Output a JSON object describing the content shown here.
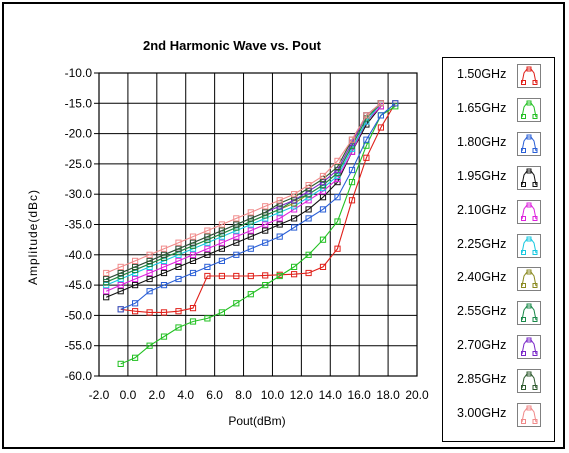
{
  "chart_data": {
    "type": "line",
    "title": "2nd Harmonic Wave vs. Pout",
    "xlabel": "Pout(dBm)",
    "ylabel": "Amplitude(dBc)",
    "xlim": [
      -2.0,
      20.0
    ],
    "ylim": [
      -60.0,
      -10.0
    ],
    "xticks": [
      "-2.0",
      "0.0",
      "2.0",
      "4.0",
      "6.0",
      "8.0",
      "10.0",
      "12.0",
      "14.0",
      "16.0",
      "18.0",
      "20.0"
    ],
    "yticks": [
      "-10.0",
      "-15.0",
      "-20.0",
      "-25.0",
      "-30.0",
      "-35.0",
      "-40.0",
      "-45.0",
      "-50.0",
      "-55.0",
      "-60.0"
    ],
    "grid": true,
    "legend_position": "right",
    "series": [
      {
        "name": "1.50GHz",
        "color": "#e0201a",
        "x": [
          -0.5,
          0.5,
          1.5,
          2.5,
          3.5,
          4.5,
          5.5,
          6.5,
          7.5,
          8.5,
          9.5,
          10.5,
          11.5,
          12.5,
          13.5,
          14.5,
          15.5,
          16.5,
          17.5,
          18.5
        ],
        "y": [
          -49.0,
          -49.3,
          -49.5,
          -49.5,
          -49.3,
          -48.8,
          -43.5,
          -43.5,
          -43.5,
          -43.5,
          -43.4,
          -43.3,
          -43.2,
          -43.0,
          -42.0,
          -39.0,
          -31.0,
          -24.0,
          -19.0,
          -15.0
        ]
      },
      {
        "name": "1.65GHz",
        "color": "#22c022",
        "x": [
          -0.5,
          0.5,
          1.5,
          2.5,
          3.5,
          4.5,
          5.5,
          6.5,
          7.5,
          8.5,
          9.5,
          10.5,
          11.5,
          12.5,
          13.5,
          14.5,
          15.5,
          16.5,
          17.5,
          18.5
        ],
        "y": [
          -58.0,
          -57.0,
          -55.0,
          -53.5,
          -52.0,
          -51.0,
          -50.5,
          -49.5,
          -48.0,
          -46.5,
          -45.0,
          -43.5,
          -42.0,
          -40.0,
          -37.5,
          -34.5,
          -28.0,
          -22.0,
          -17.0,
          -15.5
        ]
      },
      {
        "name": "1.80GHz",
        "color": "#2a5fd6",
        "x": [
          -0.5,
          0.5,
          1.5,
          2.5,
          3.5,
          4.5,
          5.5,
          6.5,
          7.5,
          8.5,
          9.5,
          10.5,
          11.5,
          12.5,
          13.5,
          14.5,
          15.5,
          16.5,
          17.5,
          18.5
        ],
        "y": [
          -49.0,
          -48.0,
          -46.0,
          -45.0,
          -44.0,
          -43.0,
          -42.0,
          -41.0,
          -40.0,
          -39.0,
          -38.0,
          -37.0,
          -35.5,
          -34.0,
          -32.5,
          -30.5,
          -26.0,
          -21.0,
          -17.0,
          -15.0
        ]
      },
      {
        "name": "1.95GHz",
        "color": "#111111",
        "x": [
          -1.5,
          -0.5,
          0.5,
          1.5,
          2.5,
          3.5,
          4.5,
          5.5,
          6.5,
          7.5,
          8.5,
          9.5,
          10.5,
          11.5,
          12.5,
          13.5,
          14.5,
          15.5,
          16.5,
          17.5
        ],
        "y": [
          -47.0,
          -46.0,
          -45.0,
          -44.0,
          -43.0,
          -42.0,
          -41.0,
          -40.0,
          -39.0,
          -38.0,
          -37.0,
          -36.0,
          -35.0,
          -34.0,
          -32.5,
          -30.5,
          -28.0,
          -23.0,
          -18.5,
          -15.5
        ]
      },
      {
        "name": "2.10GHz",
        "color": "#dd22dd",
        "x": [
          -1.5,
          -0.5,
          0.5,
          1.5,
          2.5,
          3.5,
          4.5,
          5.5,
          6.5,
          7.5,
          8.5,
          9.5,
          10.5,
          11.5,
          12.5,
          13.5,
          14.5,
          15.5,
          16.5,
          17.5
        ],
        "y": [
          -46.0,
          -45.0,
          -44.0,
          -43.0,
          -42.0,
          -41.0,
          -40.0,
          -39.0,
          -38.0,
          -37.0,
          -36.0,
          -35.0,
          -34.0,
          -32.5,
          -31.0,
          -29.5,
          -27.5,
          -23.0,
          -18.0,
          -15.5
        ]
      },
      {
        "name": "2.25GHz",
        "color": "#18c8e0",
        "x": [
          -1.5,
          -0.5,
          0.5,
          1.5,
          2.5,
          3.5,
          4.5,
          5.5,
          6.5,
          7.5,
          8.5,
          9.5,
          10.5,
          11.5,
          12.5,
          13.5,
          14.5,
          15.5,
          16.5,
          17.5
        ],
        "y": [
          -45.0,
          -44.0,
          -43.0,
          -42.0,
          -41.0,
          -40.0,
          -39.0,
          -38.0,
          -37.0,
          -36.0,
          -35.0,
          -34.0,
          -33.0,
          -32.0,
          -30.5,
          -29.0,
          -27.0,
          -22.5,
          -18.0,
          -15.0
        ]
      },
      {
        "name": "2.40GHz",
        "color": "#8a8a20",
        "x": [
          -1.5,
          -0.5,
          0.5,
          1.5,
          2.5,
          3.5,
          4.5,
          5.5,
          6.5,
          7.5,
          8.5,
          9.5,
          10.5,
          11.5,
          12.5,
          13.5,
          14.5,
          15.5,
          16.5,
          17.5
        ],
        "y": [
          -44.5,
          -43.5,
          -42.5,
          -41.5,
          -40.5,
          -39.5,
          -38.5,
          -37.5,
          -36.5,
          -35.5,
          -34.5,
          -33.5,
          -32.5,
          -31.5,
          -30.0,
          -28.5,
          -26.5,
          -22.0,
          -17.5,
          -15.0
        ]
      },
      {
        "name": "2.55GHz",
        "color": "#1a8a4a",
        "x": [
          -1.5,
          -0.5,
          0.5,
          1.5,
          2.5,
          3.5,
          4.5,
          5.5,
          6.5,
          7.5,
          8.5,
          9.5,
          10.5,
          11.5,
          12.5,
          13.5,
          14.5,
          15.5,
          16.5,
          17.5
        ],
        "y": [
          -44.5,
          -43.5,
          -42.5,
          -41.5,
          -40.5,
          -39.5,
          -38.5,
          -37.5,
          -36.5,
          -35.5,
          -34.5,
          -33.5,
          -32.5,
          -31.0,
          -30.0,
          -28.5,
          -26.5,
          -22.0,
          -17.5,
          -15.0
        ]
      },
      {
        "name": "2.70GHz",
        "color": "#7a28c8",
        "x": [
          -1.5,
          -0.5,
          0.5,
          1.5,
          2.5,
          3.5,
          4.5,
          5.5,
          6.5,
          7.5,
          8.5,
          9.5,
          10.5,
          11.5,
          12.5,
          13.5,
          14.5,
          15.5,
          16.5,
          17.5
        ],
        "y": [
          -44.0,
          -43.0,
          -42.0,
          -41.0,
          -40.0,
          -39.0,
          -38.0,
          -37.0,
          -36.0,
          -35.0,
          -34.0,
          -33.0,
          -32.0,
          -31.0,
          -29.5,
          -28.0,
          -26.0,
          -21.5,
          -17.0,
          -15.0
        ]
      },
      {
        "name": "2.85GHz",
        "color": "#2d5a2d",
        "x": [
          -1.5,
          -0.5,
          0.5,
          1.5,
          2.5,
          3.5,
          4.5,
          5.5,
          6.5,
          7.5,
          8.5,
          9.5,
          10.5,
          11.5,
          12.5,
          13.5,
          14.5,
          15.5,
          16.5,
          17.5
        ],
        "y": [
          -44.0,
          -43.0,
          -42.0,
          -41.0,
          -40.0,
          -39.0,
          -38.0,
          -37.0,
          -36.0,
          -35.0,
          -34.0,
          -33.0,
          -31.5,
          -30.5,
          -29.0,
          -27.5,
          -25.5,
          -21.0,
          -17.0,
          -15.0
        ]
      },
      {
        "name": "3.00GHz",
        "color": "#f08a8a",
        "x": [
          -1.5,
          -0.5,
          0.5,
          1.5,
          2.5,
          3.5,
          4.5,
          5.5,
          6.5,
          7.5,
          8.5,
          9.5,
          10.5,
          11.5,
          12.5,
          13.5,
          14.5,
          15.5,
          16.5,
          17.5
        ],
        "y": [
          -43.0,
          -42.0,
          -41.0,
          -40.0,
          -39.0,
          -38.0,
          -37.0,
          -36.0,
          -35.0,
          -34.0,
          -33.0,
          -32.0,
          -31.0,
          -30.0,
          -28.5,
          -27.0,
          -24.5,
          -21.0,
          -17.0,
          -15.0
        ]
      }
    ]
  }
}
